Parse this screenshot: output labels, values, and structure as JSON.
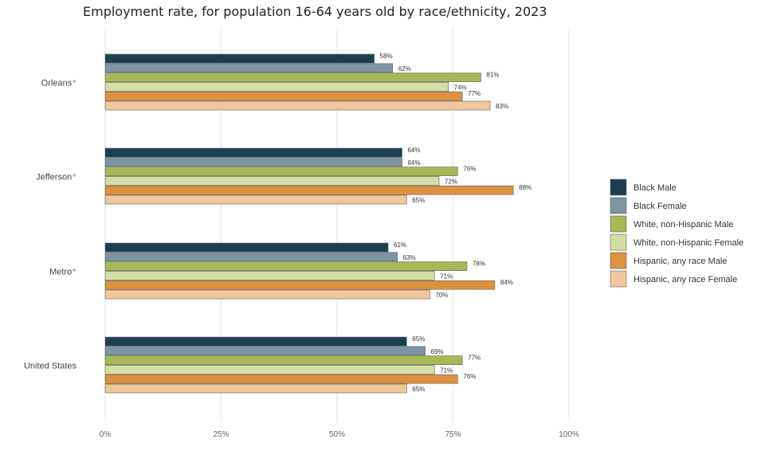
{
  "chart_data": {
    "type": "bar",
    "orientation": "horizontal",
    "title": "Employment rate, for population 16-64 years old by race/ethnicity, 2023",
    "categories": [
      "Orleans⁺",
      "Jefferson⁺",
      "Metro⁺",
      "United States"
    ],
    "xlim": [
      0,
      100
    ],
    "x_ticks": [
      "0%",
      "25%",
      "50%",
      "75%",
      "100%"
    ],
    "x_tick_values": [
      0,
      25,
      50,
      75,
      100
    ],
    "grid": "vertical",
    "legend_position": "right",
    "series": [
      {
        "name": "Black Male",
        "color": "#1c3f52",
        "values": [
          58,
          64,
          61,
          65
        ],
        "labels": [
          "58%",
          "64%",
          "61%",
          "65%"
        ]
      },
      {
        "name": "Black Female",
        "color": "#7b95a2",
        "values": [
          62,
          64,
          63,
          69
        ],
        "labels": [
          "62%",
          "64%",
          "63%",
          "69%"
        ]
      },
      {
        "name": "White, non-Hispanic Male",
        "color": "#a7b955",
        "values": [
          81,
          76,
          78,
          77
        ],
        "labels": [
          "81%",
          "76%",
          "78%",
          "77%"
        ]
      },
      {
        "name": "White, non-Hispanic Female",
        "color": "#d4dea4",
        "values": [
          74,
          72,
          71,
          71
        ],
        "labels": [
          "74%",
          "72%",
          "71%",
          "71%"
        ]
      },
      {
        "name": "Hispanic, any race Male",
        "color": "#dd923f",
        "values": [
          77,
          88,
          84,
          76
        ],
        "labels": [
          "77%",
          "88%",
          "84%",
          "76%"
        ]
      },
      {
        "name": "Hispanic, any race Female",
        "color": "#f0c79a",
        "values": [
          83,
          65,
          70,
          65
        ],
        "labels": [
          "83%",
          "65%",
          "70%",
          "65%"
        ]
      }
    ]
  }
}
